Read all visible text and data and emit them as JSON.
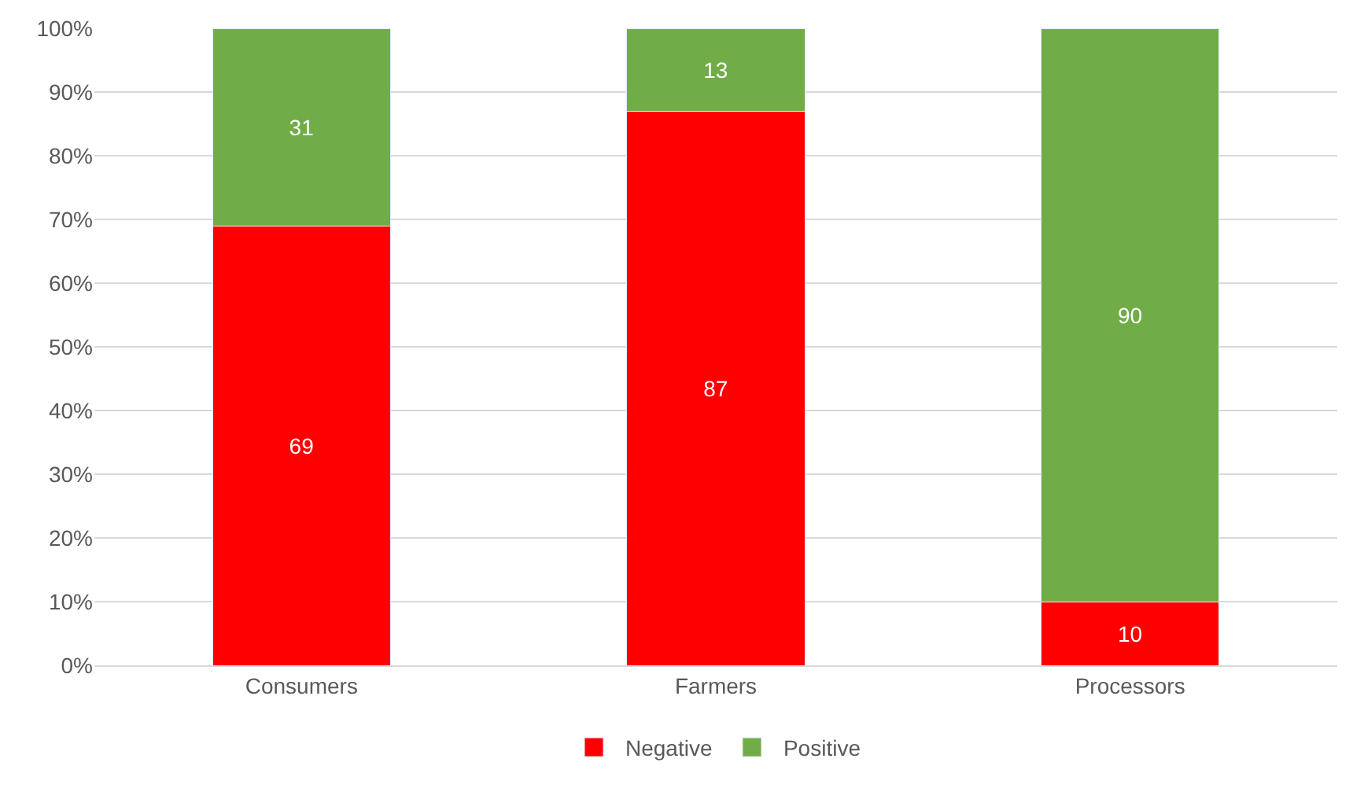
{
  "chart_data": {
    "type": "bar",
    "stacked": true,
    "categories": [
      "Consumers",
      "Farmers",
      "Processors"
    ],
    "series": [
      {
        "name": "Negative",
        "color": "#ff0000",
        "values": [
          69,
          87,
          10
        ]
      },
      {
        "name": "Positive",
        "color": "#70ad47",
        "values": [
          31,
          13,
          90
        ]
      }
    ],
    "data_labels": true,
    "ylim": [
      0,
      100
    ],
    "yticks": [
      {
        "value": 0,
        "label": "0%"
      },
      {
        "value": 10,
        "label": "10%"
      },
      {
        "value": 20,
        "label": "20%"
      },
      {
        "value": 30,
        "label": "30%"
      },
      {
        "value": 40,
        "label": "40%"
      },
      {
        "value": 50,
        "label": "50%"
      },
      {
        "value": 60,
        "label": "60%"
      },
      {
        "value": 70,
        "label": "70%"
      },
      {
        "value": 80,
        "label": "80%"
      },
      {
        "value": 90,
        "label": "90%"
      },
      {
        "value": 100,
        "label": "100%"
      }
    ],
    "grid": "y",
    "legend": "bottom"
  }
}
